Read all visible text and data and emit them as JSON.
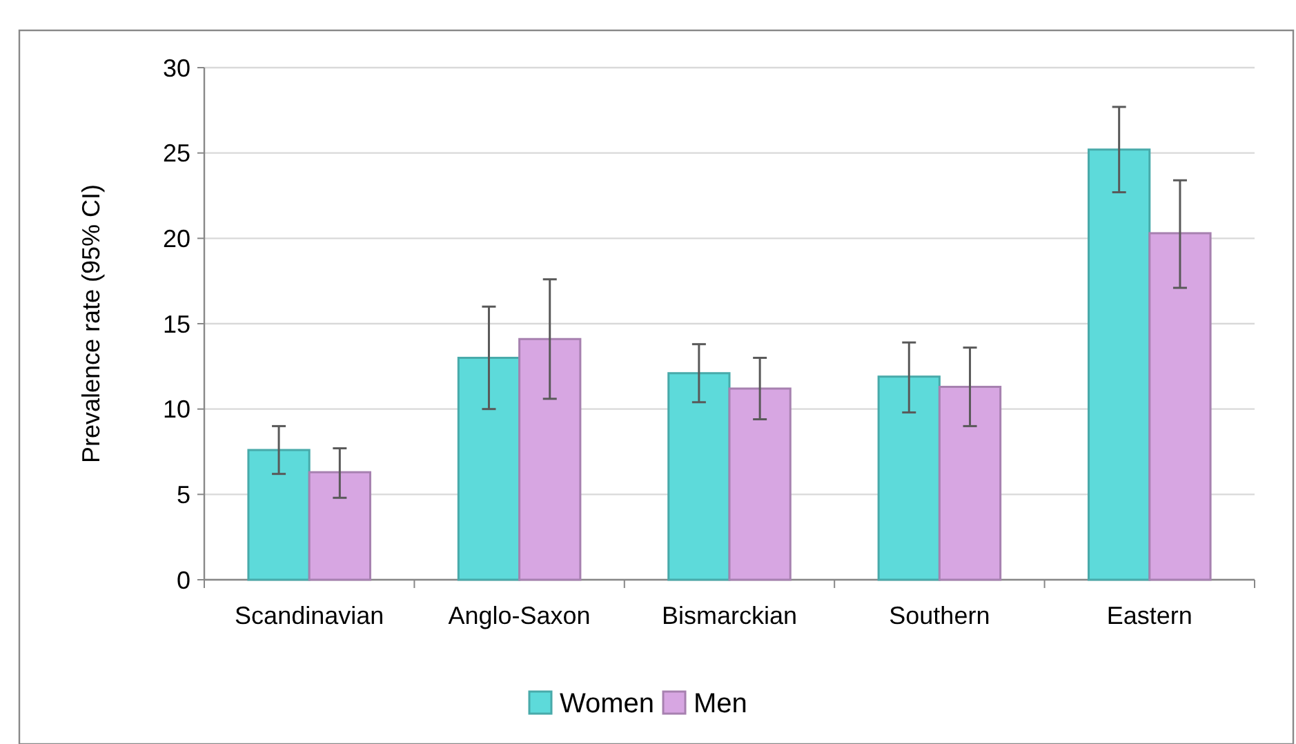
{
  "chart_data": {
    "type": "bar",
    "ylabel": "Prevalence rate (95% CI)",
    "categories": [
      "Scandinavian",
      "Anglo-Saxon",
      "Bismarckian",
      "Southern",
      "Eastern"
    ],
    "series": [
      {
        "name": "Women",
        "color": "#5ddada",
        "values": [
          7.6,
          13.0,
          12.1,
          11.9,
          25.2
        ],
        "errors": [
          [
            6.2,
            9.0
          ],
          [
            10.0,
            16.0
          ],
          [
            10.4,
            13.8
          ],
          [
            9.8,
            13.9
          ],
          [
            22.7,
            27.7
          ]
        ]
      },
      {
        "name": "Men",
        "color": "#d7a6e2",
        "values": [
          6.3,
          14.1,
          11.2,
          11.3,
          20.3
        ],
        "errors": [
          [
            4.8,
            7.7
          ],
          [
            10.6,
            17.6
          ],
          [
            9.4,
            13.0
          ],
          [
            9.0,
            13.6
          ],
          [
            17.1,
            23.4
          ]
        ]
      }
    ],
    "ylim": [
      0,
      30
    ],
    "yticks": [
      0,
      5,
      10,
      15,
      20,
      25,
      30
    ],
    "grid": "y",
    "legend": "bottom"
  }
}
